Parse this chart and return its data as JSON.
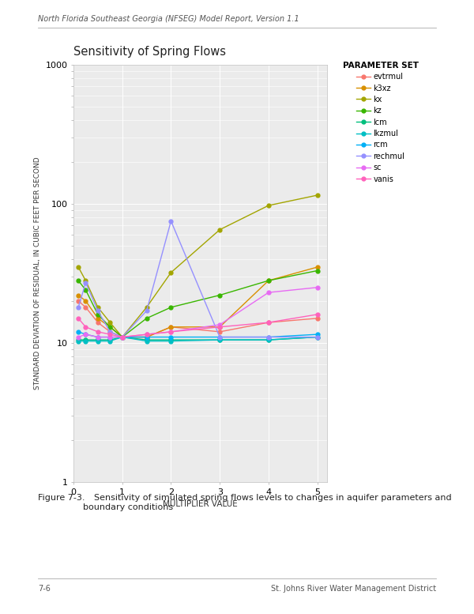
{
  "title": "Sensitivity of Spring Flows",
  "xlabel": "MULTIPLIER VALUE",
  "ylabel": "STANDARD DEVIATION OF RESIDUAL, IN CUBIC FEET PER SECOND",
  "x_values": [
    0.1,
    0.25,
    0.5,
    0.75,
    1.0,
    1.5,
    2.0,
    3.0,
    4.0,
    5.0
  ],
  "series": {
    "evtrmul": {
      "color": "#F8766D",
      "values": [
        20,
        18,
        14,
        12,
        11,
        11,
        13,
        12,
        14,
        15
      ]
    },
    "k3xz": {
      "color": "#D89000",
      "values": [
        22,
        20,
        15,
        13,
        11,
        11,
        13,
        13,
        28,
        35
      ]
    },
    "kx": {
      "color": "#A3A500",
      "values": [
        35,
        28,
        18,
        14,
        11,
        18,
        32,
        65,
        97,
        115
      ]
    },
    "kz": {
      "color": "#39B600",
      "values": [
        28,
        24,
        16,
        13,
        11,
        15,
        18,
        22,
        28,
        33
      ]
    },
    "lcm": {
      "color": "#00BF7D",
      "values": [
        10.5,
        10.5,
        10.5,
        10.5,
        11,
        10.5,
        10.5,
        10.5,
        10.5,
        11
      ]
    },
    "lkzmul": {
      "color": "#00BFC4",
      "values": [
        10.3,
        10.3,
        10.3,
        10.3,
        11,
        10.3,
        10.3,
        10.5,
        10.5,
        11
      ]
    },
    "rcm": {
      "color": "#00B0F6",
      "values": [
        12,
        11.5,
        11,
        11,
        11,
        11,
        11,
        11,
        11,
        11.5
      ]
    },
    "rechmul": {
      "color": "#9590FF",
      "values": [
        18,
        27,
        17,
        12,
        11,
        17,
        75,
        11,
        11,
        11
      ]
    },
    "sc": {
      "color": "#E76BF3",
      "values": [
        11,
        11.5,
        11,
        11,
        11,
        11.5,
        12,
        13.5,
        23,
        25
      ]
    },
    "vanis": {
      "color": "#FF62BC",
      "values": [
        15,
        13,
        12,
        11.5,
        11,
        11.5,
        12,
        13,
        14,
        16
      ]
    }
  },
  "ylim": [
    1,
    1000
  ],
  "xlim": [
    0,
    5.2
  ],
  "bg_color": "#EBEBEB",
  "grid_color": "#FFFFFF",
  "caption_bold": "Figure 7-3.",
  "caption_text": "    Sensitivity of simulated spring flows levels to changes in aquifer parameters and\nboundary conditions",
  "header": "North Florida Southeast Georgia (NFSEG) Model Report, Version 1.1",
  "footer_left": "7-6",
  "footer_right": "St. Johns River Water Management District",
  "page_bg": "#FFFFFF"
}
